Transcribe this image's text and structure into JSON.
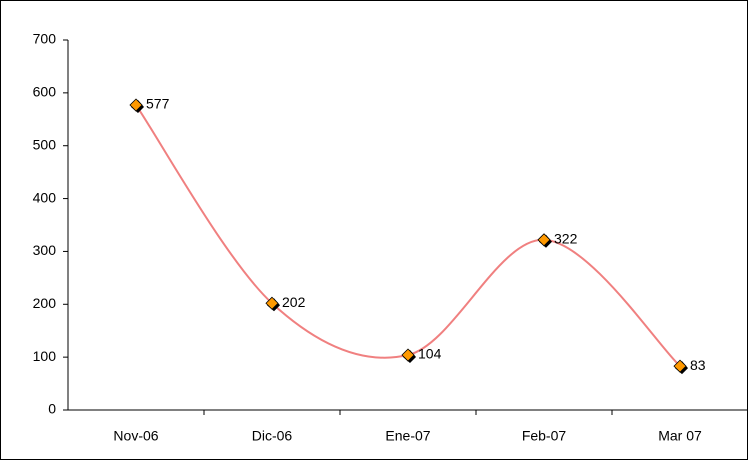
{
  "chart_data": {
    "type": "line",
    "categories": [
      "Nov-06",
      "Dic-06",
      "Ene-07",
      "Feb-07",
      "Mar 07"
    ],
    "values": [
      577,
      202,
      104,
      322,
      83
    ],
    "color": "#f08080",
    "marker_color": "#ff9900",
    "ylim": [
      0,
      700
    ],
    "yticks": [
      0,
      100,
      200,
      300,
      400,
      500,
      600,
      700
    ],
    "grid": false,
    "smooth": true
  }
}
